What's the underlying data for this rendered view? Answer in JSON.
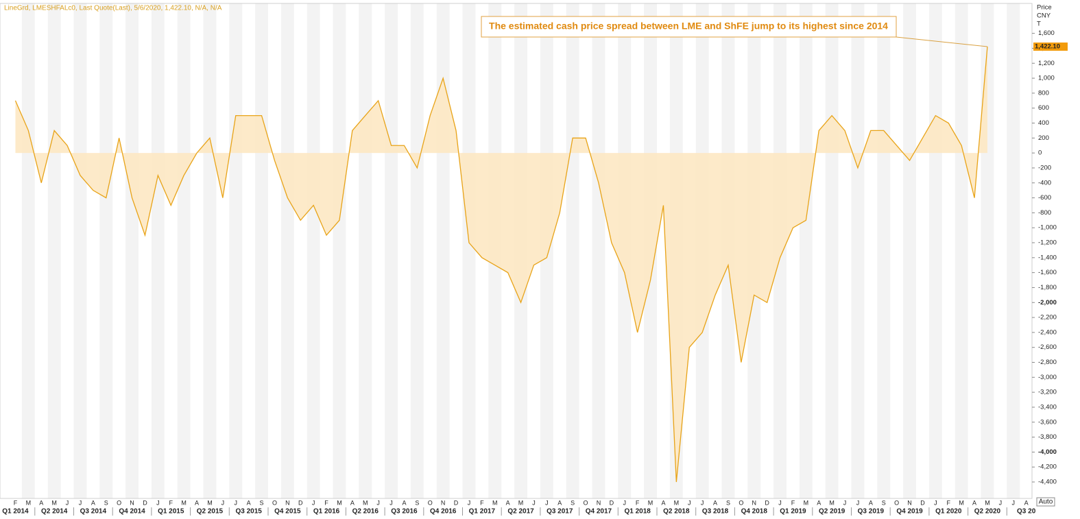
{
  "chart_data": {
    "type": "area",
    "header": "LineGrd, LMESHFALc0, Last Quote(Last), 5/6/2020, 1,422.10, N/A, N/A",
    "annotation": "The estimated cash price spread between LME and ShFE jump to its highest since 2014",
    "y_axis_label": [
      "Price",
      "CNY",
      "T"
    ],
    "last_value_label": "1,422.10",
    "auto_button": "Auto",
    "categories": [
      "F",
      "M",
      "A",
      "M",
      "J",
      "J",
      "A",
      "S",
      "O",
      "N",
      "D",
      "J",
      "F",
      "M",
      "A",
      "M",
      "J",
      "J",
      "A",
      "S",
      "O",
      "N",
      "D",
      "J",
      "F",
      "M",
      "A",
      "M",
      "J",
      "J",
      "A",
      "S",
      "O",
      "N",
      "D",
      "J",
      "F",
      "M",
      "A",
      "M",
      "J",
      "J",
      "A",
      "S",
      "O",
      "N",
      "D",
      "J",
      "F",
      "M",
      "A",
      "M",
      "J",
      "J",
      "A",
      "S",
      "O",
      "N",
      "D",
      "J",
      "F",
      "M",
      "A",
      "M",
      "J",
      "J",
      "A",
      "S",
      "O",
      "N",
      "D",
      "J",
      "F",
      "M",
      "A",
      "M",
      "J",
      "J",
      "A"
    ],
    "quarters": [
      "Q1 2014",
      "Q2 2014",
      "Q3 2014",
      "Q4 2014",
      "Q1 2015",
      "Q2 2015",
      "Q3 2015",
      "Q4 2015",
      "Q1 2016",
      "Q2 2016",
      "Q3 2016",
      "Q4 2016",
      "Q1 2017",
      "Q2 2017",
      "Q3 2017",
      "Q4 2017",
      "Q1 2018",
      "Q2 2018",
      "Q3 2018",
      "Q4 2018",
      "Q1 2019",
      "Q2 2019",
      "Q3 2019",
      "Q4 2019",
      "Q1 2020",
      "Q2 2020",
      "Q3 20"
    ],
    "series": [
      {
        "name": "LMESHFALc0",
        "color": "#e8a317",
        "fill": "#fde6bf",
        "values": [
          700,
          300,
          -400,
          300,
          100,
          -300,
          -500,
          -600,
          200,
          -600,
          -1100,
          -300,
          -700,
          -300,
          0,
          200,
          -600,
          500,
          500,
          500,
          -100,
          -600,
          -900,
          -700,
          -1100,
          -900,
          300,
          500,
          700,
          100,
          100,
          -200,
          500,
          1000,
          300,
          -1200,
          -1400,
          -1500,
          -1600,
          -2000,
          -1500,
          -1400,
          -800,
          200,
          200,
          -400,
          -1200,
          -1600,
          -2400,
          -1700,
          -700,
          -4400,
          -2600,
          -2400,
          -1900,
          -1500,
          -2800,
          -1900,
          -2000,
          -1400,
          -1000,
          -900,
          300,
          500,
          300,
          -200,
          300,
          300,
          100,
          -100,
          200,
          500,
          400,
          100,
          -600,
          1422,
          null,
          null,
          null
        ]
      }
    ],
    "ylim": [
      -4620,
      2000
    ],
    "yticks": [
      {
        "value": -4400,
        "label": "-4,400"
      },
      {
        "value": -4200,
        "label": "-4,200"
      },
      {
        "value": -4000,
        "label": "-4,000"
      },
      {
        "value": -3800,
        "label": "-3,800"
      },
      {
        "value": -3600,
        "label": "-3,600"
      },
      {
        "value": -3400,
        "label": "-3,400"
      },
      {
        "value": -3200,
        "label": "-3,200"
      },
      {
        "value": -3000,
        "label": "-3,000"
      },
      {
        "value": -2800,
        "label": "-2,800"
      },
      {
        "value": -2600,
        "label": "-2,600"
      },
      {
        "value": -2400,
        "label": "-2,400"
      },
      {
        "value": -2200,
        "label": "-2,200"
      },
      {
        "value": -2000,
        "label": "-2,000"
      },
      {
        "value": -1800,
        "label": "-1,800"
      },
      {
        "value": -1600,
        "label": "-1,600"
      },
      {
        "value": -1400,
        "label": "-1,400"
      },
      {
        "value": -1200,
        "label": "-1,200"
      },
      {
        "value": -1000,
        "label": "-1,000"
      },
      -800,
      -600,
      -400,
      -200,
      0,
      200,
      400,
      600,
      800,
      {
        "value": 1000,
        "label": "1,000"
      },
      {
        "value": 1200,
        "label": "1,200"
      },
      {
        "value": 1400,
        "label": "1,400"
      },
      {
        "value": 1600,
        "label": "1,600"
      }
    ]
  }
}
